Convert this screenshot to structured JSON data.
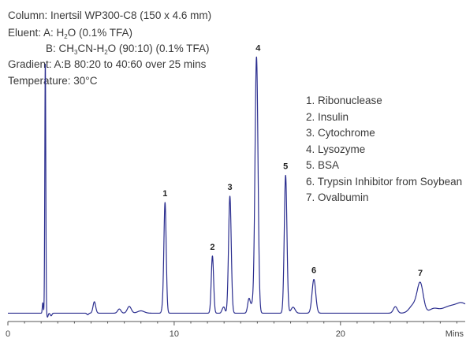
{
  "conditions": {
    "column": "Column: Inertsil WP300-C8 (150 x 4.6 mm)",
    "eluent_a": {
      "prefix": "Eluent: A: H",
      "sub": "2",
      "suffix": "O (0.1% TFA)"
    },
    "eluent_b": {
      "prefix": "B: CH",
      "sub1": "3",
      "mid": "CN-H",
      "sub2": "2",
      "suffix": "O (90:10) (0.1% TFA)"
    },
    "gradient": "Gradient: A:B 80:20 to 40:60 over 25 mins",
    "temperature": "Temperature: 30°C"
  },
  "legend": [
    "1. Ribonuclease",
    "2. Insulin",
    "3. Cytochrome",
    "4. Lysozyme",
    "5. BSA",
    "6. Trypsin Inhibitor from Soybean",
    "7. Ovalbumin"
  ],
  "colors": {
    "trace": "#2b2e8f",
    "axis": "#555555",
    "text": "#3a3a3a"
  },
  "chart_data": {
    "type": "line",
    "title": "",
    "xlabel": "",
    "ylabel": "",
    "x_unit": "Mins",
    "xlim": [
      0,
      27.5
    ],
    "ylim": [
      0,
      100
    ],
    "x_ticks": [
      0,
      10,
      20
    ],
    "grid": false,
    "baseline": 3.2,
    "peaks": [
      {
        "label": "",
        "rt": 2.25,
        "height": 96,
        "width": 0.03
      },
      {
        "label": "1",
        "rt": 9.45,
        "height": 42.5,
        "width": 0.07
      },
      {
        "label": "2",
        "rt": 12.3,
        "height": 22,
        "width": 0.07
      },
      {
        "label": "3",
        "rt": 13.35,
        "height": 45,
        "width": 0.08
      },
      {
        "label": "4",
        "rt": 14.95,
        "height": 98.5,
        "width": 0.09
      },
      {
        "label": "5",
        "rt": 16.7,
        "height": 53,
        "width": 0.08
      },
      {
        "label": "6",
        "rt": 18.4,
        "height": 13,
        "width": 0.11
      },
      {
        "label": "7",
        "rt": 24.8,
        "height": 11,
        "width": 0.18
      }
    ],
    "minor_peaks": [
      {
        "rt": 2.1,
        "height": 4,
        "width": 0.03
      },
      {
        "rt": 5.2,
        "height": 4.4,
        "width": 0.08
      },
      {
        "rt": 6.7,
        "height": 1.6,
        "width": 0.1
      },
      {
        "rt": 7.3,
        "height": 2.6,
        "width": 0.12
      },
      {
        "rt": 8.0,
        "height": 0.9,
        "width": 0.2
      },
      {
        "rt": 9.3,
        "height": 1.5,
        "width": 0.06
      },
      {
        "rt": 12.9,
        "height": 1.2,
        "width": 0.06
      },
      {
        "rt": 13.0,
        "height": 2,
        "width": 0.06
      },
      {
        "rt": 14.5,
        "height": 5.6,
        "width": 0.08
      },
      {
        "rt": 14.7,
        "height": 3,
        "width": 0.08
      },
      {
        "rt": 17.15,
        "height": 2.3,
        "width": 0.12
      },
      {
        "rt": 23.3,
        "height": 2.5,
        "width": 0.12
      },
      {
        "rt": 24.4,
        "height": 3.2,
        "width": 0.25
      },
      {
        "rt": 25.6,
        "height": 1.2,
        "width": 0.25
      },
      {
        "rt": 26.6,
        "height": 1.3,
        "width": 0.4
      },
      {
        "rt": 27.3,
        "height": 1.7,
        "width": 0.3
      }
    ],
    "dips": [
      {
        "rt": 2.38,
        "depth": 1.5,
        "width": 0.04
      },
      {
        "rt": 2.6,
        "depth": 1.0,
        "width": 0.05
      },
      {
        "rt": 4.8,
        "depth": 0.6,
        "width": 0.05
      }
    ]
  }
}
